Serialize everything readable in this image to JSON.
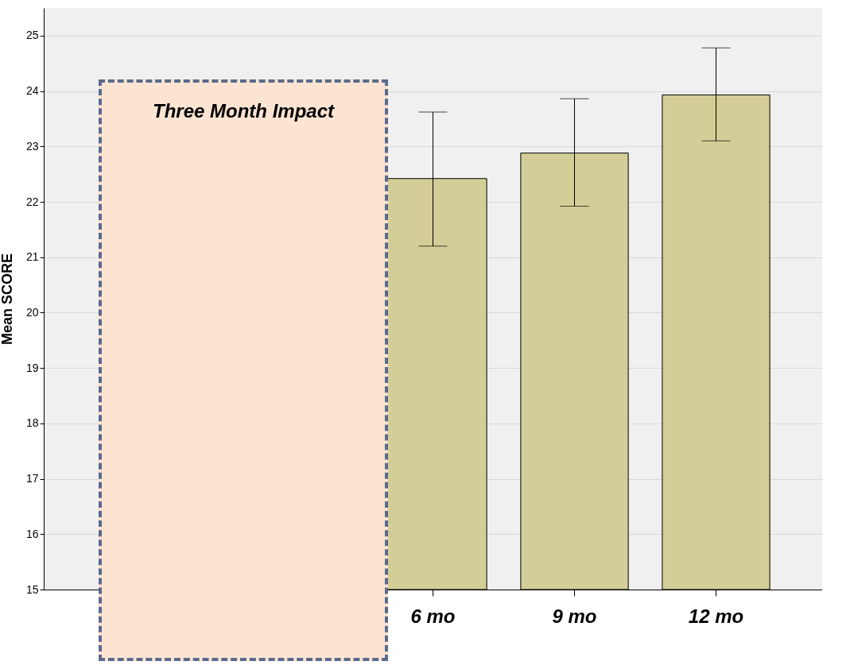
{
  "chart_data": {
    "type": "bar",
    "ylabel": "Mean SCORE",
    "categories": [
      null,
      null,
      "6 mo",
      "9 mo",
      "12 mo"
    ],
    "values": [
      null,
      null,
      22.42,
      22.88,
      23.93
    ],
    "errors": [
      null,
      null,
      [
        21.2,
        23.62
      ],
      [
        21.92,
        23.86
      ],
      [
        23.1,
        24.78
      ]
    ],
    "color": "#d3cd97",
    "ylim": [
      15,
      25.5
    ],
    "yticks": [
      15,
      16,
      17,
      18,
      19,
      20,
      21,
      22,
      23,
      24,
      25
    ],
    "grid": "y",
    "annotations": [
      "Three Month Impact"
    ]
  }
}
